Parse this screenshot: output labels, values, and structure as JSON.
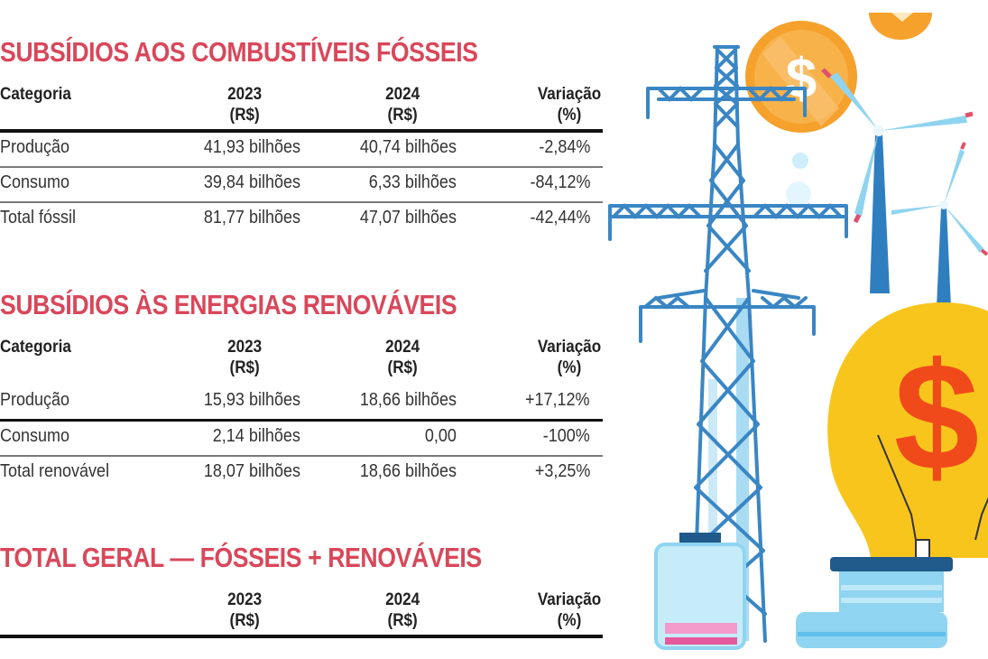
{
  "columns": {
    "category": "Categoria",
    "year_2023": "2023",
    "year_2024": "2024",
    "currency": "(R$)",
    "variation": "Variação",
    "percent": "(%)"
  },
  "fossil": {
    "title": "SUBSÍDIOS AOS COMBUSTÍVEIS FÓSSEIS",
    "rows": [
      {
        "category": "Produção",
        "v2023": "41,93 bilhões",
        "v2024": "40,74 bilhões",
        "variation": "-2,84%"
      },
      {
        "category": "Consumo",
        "v2023": "39,84 bilhões",
        "v2024": "6,33 bilhões",
        "variation": "-84,12%"
      },
      {
        "category": "Total fóssil",
        "v2023": "81,77 bilhões",
        "v2024": "47,07 bilhões",
        "variation": "-42,44%"
      }
    ]
  },
  "renewable": {
    "title": "SUBSÍDIOS ÀS ENERGIAS RENOVÁVEIS",
    "rows": [
      {
        "category": "Produção",
        "v2023": "15,93 bilhões",
        "v2024": "18,66 bilhões",
        "variation": "+17,12%"
      },
      {
        "category": "Consumo",
        "v2023": "2,14 bilhões",
        "v2024": "0,00",
        "variation": "-100%"
      },
      {
        "category": "Total renovável",
        "v2023": "18,07 bilhões",
        "v2024": "18,66 bilhões",
        "variation": "+3,25%"
      }
    ]
  },
  "total": {
    "title": "TOTAL GERAL — FÓSSEIS + RENOVÁVEIS"
  },
  "colors": {
    "title_red": "#d9475a",
    "tower_blue": "#2f7fc0",
    "coin_orange": "#f5a12c",
    "bulb_yellow": "#f8c51c",
    "dollar_red": "#f04a1a",
    "light_blue": "#8fd4f0"
  },
  "illustration": {
    "icons": [
      "power-tower-icon",
      "wind-turbine-icon",
      "coin-dollar-icon",
      "light-bulb-dollar-icon",
      "battery-icon"
    ]
  }
}
